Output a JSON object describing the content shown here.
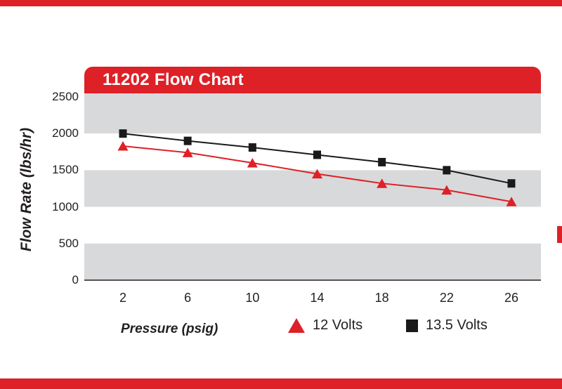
{
  "page": {
    "header_title": "11202 Flow Chart"
  },
  "colors": {
    "accent_red": "#de2027",
    "band_gray": "#d8d9da",
    "series_black": "#1a1a1a",
    "text": "#231f20"
  },
  "chart_data": {
    "type": "line",
    "title": "11202 Flow Chart",
    "xlabel": "Pressure (psig)",
    "ylabel": "Flow Rate (lbs/hr)",
    "x": [
      2,
      6,
      10,
      14,
      18,
      22,
      26
    ],
    "xticks": [
      2,
      6,
      10,
      14,
      18,
      22,
      26
    ],
    "yticks": [
      0,
      500,
      1000,
      1500,
      2000,
      2500
    ],
    "xlim": [
      0,
      28
    ],
    "ylim": [
      0,
      2500
    ],
    "grid": "horizontal-bands",
    "legend_position": "bottom",
    "series": [
      {
        "name": "12 Volts",
        "marker": "triangle",
        "color": "#de2027",
        "values": [
          1830,
          1740,
          1600,
          1450,
          1320,
          1230,
          1070
        ]
      },
      {
        "name": "13.5 Volts",
        "marker": "square",
        "color": "#1a1a1a",
        "values": [
          2000,
          1900,
          1810,
          1710,
          1610,
          1500,
          1320
        ]
      }
    ]
  }
}
